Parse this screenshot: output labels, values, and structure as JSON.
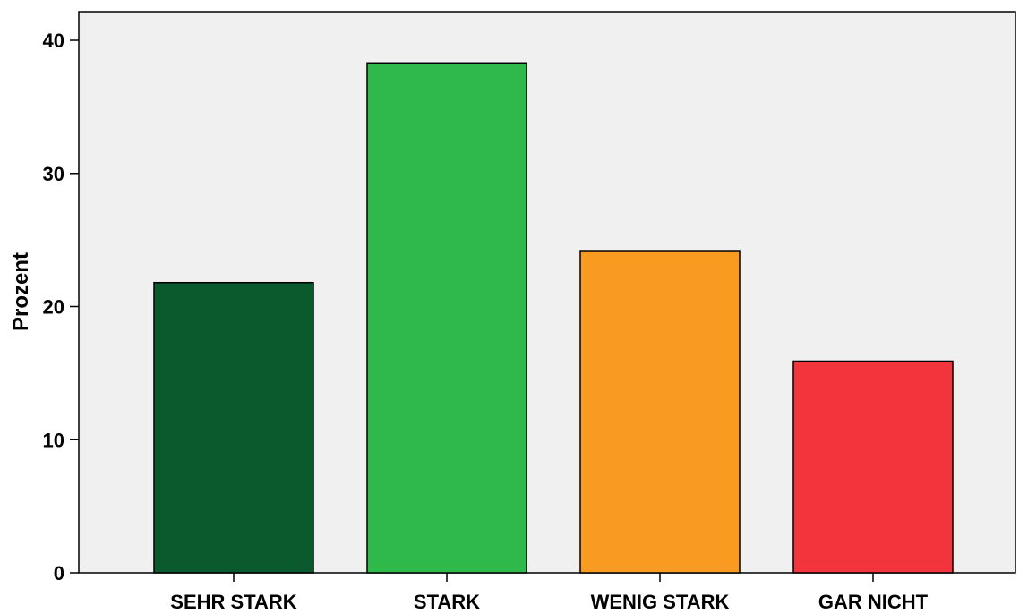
{
  "chart_data": {
    "type": "bar",
    "categories": [
      "SEHR STARK",
      "STARK",
      "WENIG STARK",
      "GAR NICHT"
    ],
    "values": [
      21.8,
      38.3,
      24.2,
      15.9
    ],
    "colors": [
      "#0b5a2e",
      "#30b94b",
      "#f99b20",
      "#f2353c"
    ],
    "xlabel": "",
    "ylabel": "Prozent",
    "ylim": [
      0,
      40
    ],
    "yticks": [
      0,
      10,
      20,
      30,
      40
    ],
    "grid": false,
    "plot_background": "#f0f0f0"
  }
}
